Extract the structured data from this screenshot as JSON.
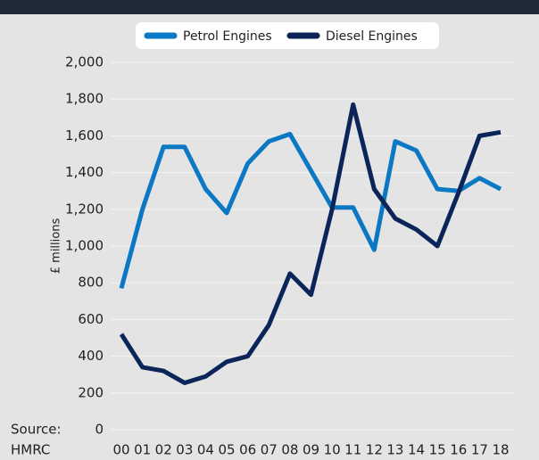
{
  "chart_data": {
    "type": "line",
    "y_label": "£ millions",
    "source": [
      "Source:",
      "HMRC"
    ],
    "categories": [
      "00",
      "01",
      "02",
      "03",
      "04",
      "05",
      "06",
      "07",
      "08",
      "09",
      "10",
      "11",
      "12",
      "13",
      "14",
      "15",
      "16",
      "17",
      "18"
    ],
    "series": [
      {
        "name": "Petrol Engines",
        "color": "#0b78c4",
        "values": [
          770,
          1200,
          1540,
          1540,
          1310,
          1180,
          1450,
          1570,
          1610,
          1410,
          1210,
          1210,
          980,
          1570,
          1520,
          1310,
          1300,
          1370,
          1310
        ]
      },
      {
        "name": "Diesel Engines",
        "color": "#0b2559",
        "values": [
          520,
          340,
          320,
          255,
          290,
          370,
          400,
          570,
          850,
          735,
          1200,
          1770,
          1310,
          1150,
          1090,
          1000,
          1290,
          1600,
          1620
        ]
      }
    ],
    "ylim": [
      0,
      2000
    ],
    "yticks": [
      0,
      200,
      400,
      600,
      800,
      {
        "value": 1000,
        "label": "1,000"
      },
      {
        "value": 1200,
        "label": "1,200"
      },
      {
        "value": 1400,
        "label": "1,400"
      },
      {
        "value": 1600,
        "label": "1,600"
      },
      {
        "value": 1800,
        "label": "1,800"
      },
      {
        "value": 2000,
        "label": "2,000"
      }
    ],
    "grid": true
  }
}
